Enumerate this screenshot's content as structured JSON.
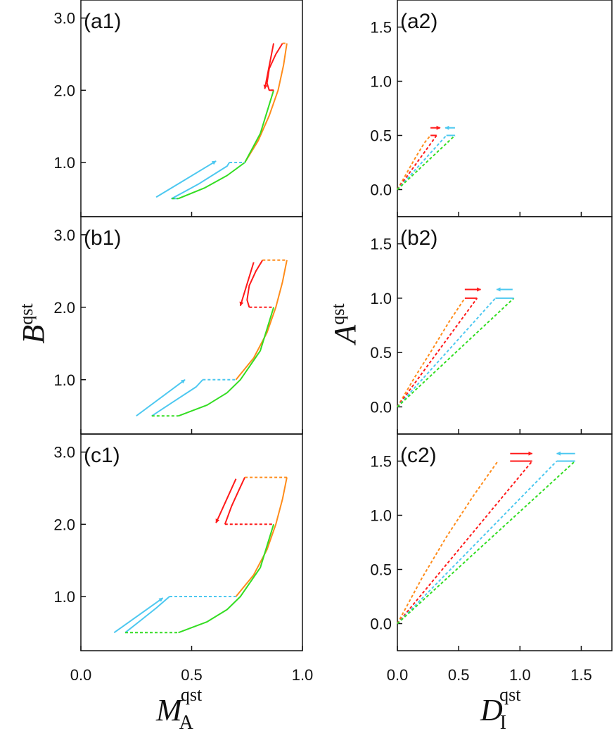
{
  "colors": {
    "orange": "#ff8c1a",
    "red": "#ff1a1a",
    "cyan": "#4dc8f0",
    "green": "#33dd22",
    "frame": "#111111"
  },
  "axes": {
    "left": {
      "ylabel_main": "B",
      "ylabel_sup": "qst",
      "xlabel_main": "M",
      "xlabel_sub": "A",
      "xlabel_sup": "qst",
      "xlim": [
        0,
        1
      ],
      "ylim": [
        0.25,
        3.25
      ],
      "xticks": [
        {
          "v": 0,
          "label": "0.0"
        },
        {
          "v": 0.5,
          "label": "0.5"
        },
        {
          "v": 1,
          "label": "1.0"
        }
      ],
      "yticks": [
        {
          "v": 1,
          "label": "1.0"
        },
        {
          "v": 2,
          "label": "2.0"
        },
        {
          "v": 3,
          "label": "3.0"
        }
      ]
    },
    "right": {
      "ylabel_main": "A",
      "ylabel_sup": "qst",
      "xlabel_main": "D",
      "xlabel_sub": "I",
      "xlabel_sup": "qst",
      "xlim": [
        0,
        1.75
      ],
      "ylim": [
        -0.25,
        1.75
      ],
      "xticks": [
        {
          "v": 0,
          "label": "0.0"
        },
        {
          "v": 0.5,
          "label": "0.5"
        },
        {
          "v": 1,
          "label": "1.0"
        },
        {
          "v": 1.5,
          "label": "1.5"
        }
      ],
      "yticks": [
        {
          "v": 0,
          "label": "0.0"
        },
        {
          "v": 0.5,
          "label": "0.5"
        },
        {
          "v": 1,
          "label": "1.0"
        },
        {
          "v": 1.5,
          "label": "1.5"
        }
      ]
    }
  },
  "chart_data": [
    {
      "type": "line",
      "panel": "a1",
      "title": "(a1)",
      "column": "left",
      "row": 0,
      "series": [
        {
          "name": "orange-solid",
          "color": "orange",
          "style": "solid",
          "x": [
            0.74,
            0.8,
            0.85,
            0.89,
            0.915,
            0.93
          ],
          "y": [
            1.0,
            1.3,
            1.65,
            2.0,
            2.35,
            2.65
          ]
        },
        {
          "name": "green-solid",
          "color": "green",
          "style": "solid",
          "x": [
            0.44,
            0.56,
            0.66,
            0.74,
            0.81,
            0.87
          ],
          "y": [
            0.5,
            0.65,
            0.82,
            1.0,
            1.4,
            2.0
          ]
        },
        {
          "name": "red-solid-return",
          "color": "red",
          "style": "solid",
          "x": [
            0.87,
            0.85,
            0.84,
            0.85,
            0.88,
            0.91
          ],
          "y": [
            2.0,
            2.0,
            2.1,
            2.3,
            2.5,
            2.65
          ]
        },
        {
          "name": "cyan-solid-return",
          "color": "cyan",
          "style": "solid",
          "x": [
            0.44,
            0.41,
            0.53,
            0.66,
            0.67
          ],
          "y": [
            0.5,
            0.5,
            0.7,
            0.95,
            1.0
          ]
        },
        {
          "name": "green-dashed",
          "color": "green",
          "style": "dashed",
          "x": [
            0.41,
            0.44
          ],
          "y": [
            0.5,
            0.5
          ]
        },
        {
          "name": "cyan-dashed",
          "color": "cyan",
          "style": "dashed",
          "x": [
            0.67,
            0.74
          ],
          "y": [
            1.0,
            1.0
          ]
        },
        {
          "name": "red-dashed",
          "color": "red",
          "style": "dashed",
          "x": [
            0.87,
            0.85
          ],
          "y": [
            2.0,
            2.0
          ]
        },
        {
          "name": "orange-dashed",
          "color": "orange",
          "style": "dashed",
          "x": [
            0.91,
            0.93
          ],
          "y": [
            2.65,
            2.65
          ]
        }
      ],
      "arrows": [
        {
          "color": "cyan",
          "x1": 0.34,
          "y1": 0.52,
          "x2": 0.61,
          "y2": 1.02
        },
        {
          "color": "red",
          "x1": 0.87,
          "y1": 2.65,
          "x2": 0.83,
          "y2": 2.02
        }
      ]
    },
    {
      "type": "line",
      "panel": "a2",
      "title": "(a2)",
      "column": "right",
      "row": 0,
      "series": [
        {
          "name": "orange-dashed",
          "color": "orange",
          "style": "dashed",
          "x": [
            0.0,
            0.08,
            0.15,
            0.22,
            0.27
          ],
          "y": [
            0.0,
            0.16,
            0.3,
            0.43,
            0.5
          ]
        },
        {
          "name": "red-dashed",
          "color": "red",
          "style": "dashed",
          "x": [
            0.0,
            0.32
          ],
          "y": [
            0.0,
            0.5
          ]
        },
        {
          "name": "cyan-dashed",
          "color": "cyan",
          "style": "dashed",
          "x": [
            0.0,
            0.4
          ],
          "y": [
            0.0,
            0.5
          ]
        },
        {
          "name": "green-dashed",
          "color": "green",
          "style": "dashed",
          "x": [
            0.0,
            0.47
          ],
          "y": [
            0.0,
            0.5
          ]
        },
        {
          "name": "red-top",
          "color": "red",
          "style": "solid",
          "x": [
            0.27,
            0.32
          ],
          "y": [
            0.5,
            0.5
          ]
        },
        {
          "name": "cyan-top",
          "color": "cyan",
          "style": "solid",
          "x": [
            0.4,
            0.47
          ],
          "y": [
            0.5,
            0.5
          ]
        }
      ],
      "arrows": [
        {
          "color": "red",
          "x1": 0.27,
          "y1": 0.57,
          "x2": 0.35,
          "y2": 0.57
        },
        {
          "color": "cyan",
          "x1": 0.47,
          "y1": 0.57,
          "x2": 0.39,
          "y2": 0.57
        }
      ]
    },
    {
      "type": "line",
      "panel": "b1",
      "title": "(b1)",
      "column": "left",
      "row": 1,
      "series": [
        {
          "name": "orange-solid",
          "color": "orange",
          "style": "solid",
          "x": [
            0.7,
            0.78,
            0.84,
            0.88,
            0.91,
            0.93
          ],
          "y": [
            1.0,
            1.3,
            1.65,
            2.0,
            2.35,
            2.65
          ]
        },
        {
          "name": "green-solid",
          "color": "green",
          "style": "solid",
          "x": [
            0.44,
            0.57,
            0.66,
            0.72,
            0.81,
            0.87
          ],
          "y": [
            0.5,
            0.65,
            0.82,
            1.0,
            1.4,
            2.0
          ]
        },
        {
          "name": "red-solid-return",
          "color": "red",
          "style": "solid",
          "x": [
            0.76,
            0.75,
            0.76,
            0.79,
            0.82
          ],
          "y": [
            2.0,
            2.1,
            2.3,
            2.5,
            2.65
          ]
        },
        {
          "name": "cyan-solid-return",
          "color": "cyan",
          "style": "solid",
          "x": [
            0.32,
            0.42,
            0.52,
            0.55
          ],
          "y": [
            0.5,
            0.7,
            0.9,
            1.0
          ]
        },
        {
          "name": "green-dashed",
          "color": "green",
          "style": "dashed",
          "x": [
            0.32,
            0.44
          ],
          "y": [
            0.5,
            0.5
          ]
        },
        {
          "name": "cyan-dashed",
          "color": "cyan",
          "style": "dashed",
          "x": [
            0.55,
            0.7
          ],
          "y": [
            1.0,
            1.0
          ]
        },
        {
          "name": "red-dashed",
          "color": "red",
          "style": "dashed",
          "x": [
            0.76,
            0.87
          ],
          "y": [
            2.0,
            2.0
          ]
        },
        {
          "name": "orange-dashed",
          "color": "orange",
          "style": "dashed",
          "x": [
            0.82,
            0.93
          ],
          "y": [
            2.65,
            2.65
          ]
        }
      ],
      "arrows": [
        {
          "color": "cyan",
          "x1": 0.25,
          "y1": 0.5,
          "x2": 0.47,
          "y2": 1.0
        },
        {
          "color": "red",
          "x1": 0.78,
          "y1": 2.62,
          "x2": 0.72,
          "y2": 2.02
        }
      ]
    },
    {
      "type": "line",
      "panel": "b2",
      "title": "(b2)",
      "column": "right",
      "row": 1,
      "series": [
        {
          "name": "orange-dashed",
          "color": "orange",
          "style": "dashed",
          "x": [
            0.0,
            0.14,
            0.28,
            0.42,
            0.55
          ],
          "y": [
            0.0,
            0.27,
            0.52,
            0.78,
            1.0
          ]
        },
        {
          "name": "red-dashed",
          "color": "red",
          "style": "dashed",
          "x": [
            0.0,
            0.65
          ],
          "y": [
            0.0,
            1.0
          ]
        },
        {
          "name": "cyan-dashed",
          "color": "cyan",
          "style": "dashed",
          "x": [
            0.0,
            0.8
          ],
          "y": [
            0.0,
            1.0
          ]
        },
        {
          "name": "green-dashed",
          "color": "green",
          "style": "dashed",
          "x": [
            0.0,
            0.95
          ],
          "y": [
            0.0,
            1.0
          ]
        },
        {
          "name": "red-top",
          "color": "red",
          "style": "solid",
          "x": [
            0.55,
            0.65
          ],
          "y": [
            1.0,
            1.0
          ]
        },
        {
          "name": "cyan-top",
          "color": "cyan",
          "style": "solid",
          "x": [
            0.8,
            0.95
          ],
          "y": [
            1.0,
            1.0
          ]
        }
      ],
      "arrows": [
        {
          "color": "red",
          "x1": 0.55,
          "y1": 1.08,
          "x2": 0.68,
          "y2": 1.08
        },
        {
          "color": "cyan",
          "x1": 0.94,
          "y1": 1.08,
          "x2": 0.81,
          "y2": 1.08
        }
      ]
    },
    {
      "type": "line",
      "panel": "c1",
      "title": "(c1)",
      "column": "left",
      "row": 2,
      "series": [
        {
          "name": "orange-solid",
          "color": "orange",
          "style": "solid",
          "x": [
            0.7,
            0.78,
            0.84,
            0.88,
            0.91,
            0.93
          ],
          "y": [
            1.0,
            1.3,
            1.65,
            2.0,
            2.35,
            2.65
          ]
        },
        {
          "name": "green-solid",
          "color": "green",
          "style": "solid",
          "x": [
            0.44,
            0.57,
            0.66,
            0.72,
            0.81,
            0.87
          ],
          "y": [
            0.5,
            0.65,
            0.82,
            1.0,
            1.4,
            2.0
          ]
        },
        {
          "name": "red-solid-return",
          "color": "red",
          "style": "solid",
          "x": [
            0.65,
            0.68,
            0.71,
            0.74
          ],
          "y": [
            2.0,
            2.25,
            2.45,
            2.65
          ]
        },
        {
          "name": "cyan-solid-return",
          "color": "cyan",
          "style": "solid",
          "x": [
            0.2,
            0.27,
            0.34,
            0.4
          ],
          "y": [
            0.5,
            0.67,
            0.84,
            1.0
          ]
        },
        {
          "name": "green-dashed",
          "color": "green",
          "style": "dashed",
          "x": [
            0.2,
            0.44
          ],
          "y": [
            0.5,
            0.5
          ]
        },
        {
          "name": "cyan-dashed",
          "color": "cyan",
          "style": "dashed",
          "x": [
            0.4,
            0.7
          ],
          "y": [
            1.0,
            1.0
          ]
        },
        {
          "name": "red-dashed",
          "color": "red",
          "style": "dashed",
          "x": [
            0.65,
            0.87
          ],
          "y": [
            2.0,
            2.0
          ]
        },
        {
          "name": "orange-dashed",
          "color": "orange",
          "style": "dashed",
          "x": [
            0.74,
            0.93
          ],
          "y": [
            2.65,
            2.65
          ]
        }
      ],
      "arrows": [
        {
          "color": "cyan",
          "x1": 0.15,
          "y1": 0.5,
          "x2": 0.37,
          "y2": 0.98
        },
        {
          "color": "red",
          "x1": 0.7,
          "y1": 2.63,
          "x2": 0.61,
          "y2": 2.02
        }
      ]
    },
    {
      "type": "line",
      "panel": "c2",
      "title": "(c2)",
      "column": "right",
      "row": 2,
      "series": [
        {
          "name": "orange-dashed",
          "color": "orange",
          "style": "dashed",
          "x": [
            0.0,
            0.2,
            0.4,
            0.62,
            0.82
          ],
          "y": [
            0.0,
            0.42,
            0.8,
            1.18,
            1.5
          ]
        },
        {
          "name": "red-dashed",
          "color": "red",
          "style": "dashed",
          "x": [
            0.0,
            1.1
          ],
          "y": [
            0.0,
            1.5
          ]
        },
        {
          "name": "cyan-dashed",
          "color": "cyan",
          "style": "dashed",
          "x": [
            0.0,
            1.3
          ],
          "y": [
            0.0,
            1.5
          ]
        },
        {
          "name": "green-dashed",
          "color": "green",
          "style": "dashed",
          "x": [
            0.0,
            1.45
          ],
          "y": [
            0.0,
            1.5
          ]
        },
        {
          "name": "red-top",
          "color": "red",
          "style": "solid",
          "x": [
            0.92,
            1.1
          ],
          "y": [
            1.5,
            1.5
          ]
        },
        {
          "name": "cyan-top",
          "color": "cyan",
          "style": "solid",
          "x": [
            1.3,
            1.45
          ],
          "y": [
            1.5,
            1.5
          ]
        }
      ],
      "arrows": [
        {
          "color": "red",
          "x1": 0.92,
          "y1": 1.57,
          "x2": 1.1,
          "y2": 1.57
        },
        {
          "color": "cyan",
          "x1": 1.45,
          "y1": 1.57,
          "x2": 1.3,
          "y2": 1.57
        }
      ]
    }
  ]
}
